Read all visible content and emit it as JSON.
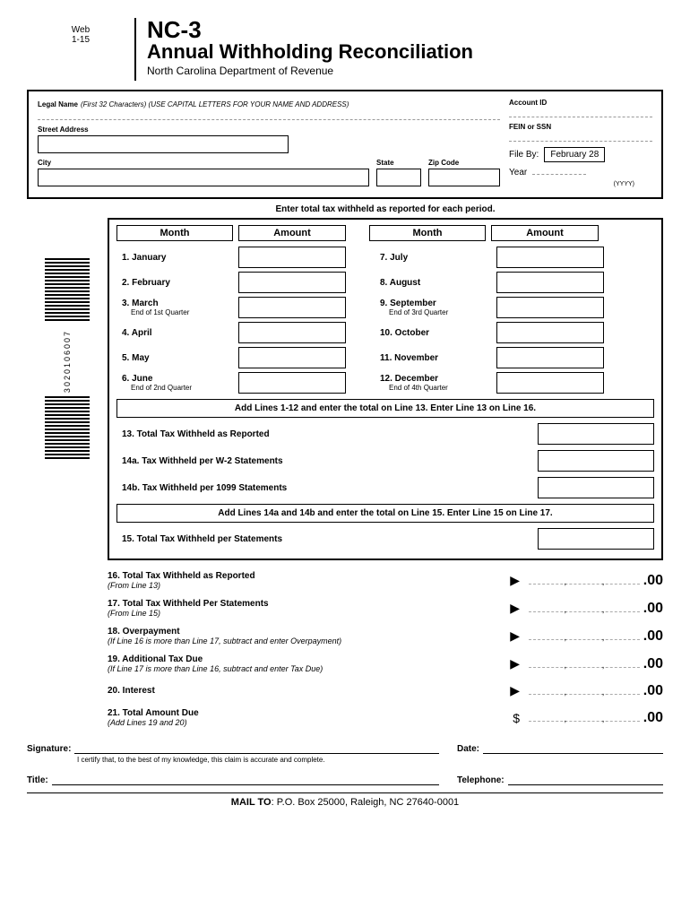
{
  "header": {
    "web": "Web",
    "version": "1-15",
    "form_code": "NC-3",
    "title": "Annual Withholding Reconciliation",
    "dept": "North Carolina Department of Revenue"
  },
  "info": {
    "legal_name_label": "Legal Name",
    "legal_name_hint": "(First 32 Characters) (USE CAPITAL LETTERS FOR YOUR NAME AND ADDRESS)",
    "street_label": "Street Address",
    "city_label": "City",
    "state_label": "State",
    "zip_label": "Zip Code",
    "account_label": "Account ID",
    "fein_label": "FEIN or SSN",
    "file_by_label": "File By:",
    "file_by_value": "February 28",
    "year_label": "Year",
    "year_hint": "(YYYY)"
  },
  "periods": {
    "title": "Enter total tax withheld as reported for each period.",
    "col_month": "Month",
    "col_amount": "Amount",
    "months_left": [
      {
        "num": "1.",
        "name": "January",
        "sub": ""
      },
      {
        "num": "2.",
        "name": "February",
        "sub": ""
      },
      {
        "num": "3.",
        "name": "March",
        "sub": "End of 1st Quarter"
      },
      {
        "num": "4.",
        "name": "April",
        "sub": ""
      },
      {
        "num": "5.",
        "name": "May",
        "sub": ""
      },
      {
        "num": "6.",
        "name": "June",
        "sub": "End of 2nd Quarter"
      }
    ],
    "months_right": [
      {
        "num": "7.",
        "name": "July",
        "sub": ""
      },
      {
        "num": "8.",
        "name": "August",
        "sub": ""
      },
      {
        "num": "9.",
        "name": "September",
        "sub": "End of 3rd Quarter"
      },
      {
        "num": "10.",
        "name": "October",
        "sub": ""
      },
      {
        "num": "11.",
        "name": "November",
        "sub": ""
      },
      {
        "num": "12.",
        "name": "December",
        "sub": "End of 4th Quarter"
      }
    ],
    "instruction1": "Add Lines 1-12 and enter the total on Line 13.  Enter Line 13 on Line 16.",
    "line13": "13.   Total Tax Withheld as Reported",
    "line14a": "14a.   Tax Withheld per W-2 Statements",
    "line14b": "14b.   Tax Withheld per 1099 Statements",
    "instruction2": "Add Lines 14a and 14b and enter the total on Line 15.  Enter Line 15 on Line 17.",
    "line15": "15.   Total Tax Withheld per Statements"
  },
  "summary": [
    {
      "num": "16.",
      "label": "Total Tax Withheld as Reported",
      "sub": "(From Line 13)",
      "symbol": "▶"
    },
    {
      "num": "17.",
      "label": "Total Tax Withheld Per Statements",
      "sub": "(From Line 15)",
      "symbol": "▶"
    },
    {
      "num": "18.",
      "label": "Overpayment",
      "sub": "(If Line 16 is more than Line 17, subtract and enter Overpayment)",
      "symbol": "▶"
    },
    {
      "num": "19.",
      "label": "Additional Tax Due",
      "sub": "(If Line 17 is more than Line 16, subtract and enter Tax Due)",
      "symbol": "▶"
    },
    {
      "num": "20.",
      "label": "Interest",
      "sub": "",
      "symbol": "▶"
    },
    {
      "num": "21.",
      "label": "Total Amount Due",
      "sub": "(Add Lines 19 and 20)",
      "symbol": "$"
    }
  ],
  "cents": ".00",
  "sig": {
    "signature_label": "Signature:",
    "cert": "I certify that, to the best of my knowledge, this claim is accurate and complete.",
    "date_label": "Date:",
    "title_label": "Title:",
    "phone_label": "Telephone:"
  },
  "mail": {
    "label": "MAIL TO",
    "addr": ": P.O. Box 25000, Raleigh, NC 27640-0001"
  },
  "barcode_number": "3020106007"
}
